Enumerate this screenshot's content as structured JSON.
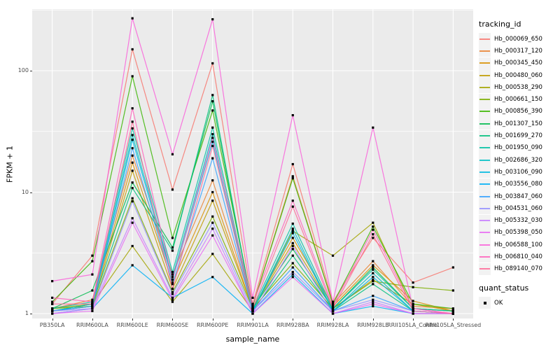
{
  "figure": {
    "background": "#FFFFFF",
    "panel_background": "#EBEBEB",
    "grid_color": "#FFFFFF",
    "axis_text_color": "#4D4D4D",
    "point_color": "#000000"
  },
  "axes": {
    "x_title": "sample_name",
    "y_title": "FPKM + 1",
    "y_tick_labels": [
      "1",
      "10",
      "100"
    ],
    "y_tick_values": [
      1,
      10,
      100
    ],
    "y_minor_values": [
      3.1623,
      31.623,
      316.23
    ],
    "y_scale": "log10"
  },
  "legend": {
    "tracking_title": "tracking_id",
    "quant_title": "quant_status",
    "quant_items": [
      {
        "label": "OK",
        "symbol": "black-square"
      }
    ]
  },
  "chart_data": {
    "type": "line",
    "title": "",
    "xlabel": "sample_name",
    "ylabel": "FPKM + 1",
    "yscale": "log10",
    "ylim": [
      0.91,
      316
    ],
    "grid": true,
    "legend_position": "right",
    "point_marker": "black-square (quant_status OK)",
    "x_categories": [
      "PB350LA",
      "RRIM600LA",
      "RRIM600LE",
      "RRIM600SE",
      "RRIM600PE",
      "RRIM901LA",
      "RRIM928BA",
      "RRIM928LA",
      "RRIM928LE",
      "RRII105LA_Control",
      "RRII105LA_Stressed"
    ],
    "series": [
      {
        "name": "Hb_000069_650",
        "color": "#F8766D",
        "values": [
          1.2,
          3.0,
          150,
          10.5,
          115,
          1.2,
          17,
          1.25,
          4.2,
          1.8,
          2.4
        ]
      },
      {
        "name": "Hb_000317_120",
        "color": "#EA8331",
        "values": [
          1.1,
          1.3,
          20,
          2.1,
          12.5,
          1.15,
          13.5,
          1.2,
          2.7,
          1.15,
          1.1
        ]
      },
      {
        "name": "Hb_000345_450",
        "color": "#D89000",
        "values": [
          1.05,
          1.2,
          17.5,
          1.8,
          10,
          1.1,
          4.2,
          1.15,
          2.5,
          1.27,
          1.05
        ]
      },
      {
        "name": "Hb_000480_060",
        "color": "#C09B00",
        "values": [
          1.05,
          1.15,
          15,
          1.6,
          8.5,
          1.1,
          3.8,
          1.1,
          1.9,
          1.2,
          1.05
        ]
      },
      {
        "name": "Hb_000538_290",
        "color": "#A3A500",
        "values": [
          1.1,
          1.2,
          3.6,
          1.25,
          3.1,
          1.05,
          4.8,
          3.0,
          5.6,
          1.1,
          1.05
        ]
      },
      {
        "name": "Hb_000661_150",
        "color": "#7CAE00",
        "values": [
          1.1,
          1.15,
          8.9,
          1.5,
          6.3,
          1.1,
          2.6,
          1.1,
          1.85,
          1.65,
          1.55
        ]
      },
      {
        "name": "Hb_000856_390",
        "color": "#39B600",
        "values": [
          1.25,
          2.7,
          90,
          4.2,
          47,
          1.15,
          13,
          1.2,
          5.2,
          1.2,
          1.1
        ]
      },
      {
        "name": "Hb_001307_150",
        "color": "#00BB4E",
        "values": [
          1.1,
          1.55,
          12,
          3.5,
          56,
          1.1,
          3.4,
          1.1,
          2.4,
          1.1,
          1.05
        ]
      },
      {
        "name": "Hb_001699_270",
        "color": "#00BF7D",
        "values": [
          1.05,
          1.2,
          10.8,
          3.3,
          63,
          1.05,
          3.0,
          1.05,
          1.75,
          1.05,
          1.0
        ]
      },
      {
        "name": "Hb_001950_090",
        "color": "#00C1A3",
        "values": [
          1.1,
          1.25,
          33.5,
          2.2,
          34,
          1.1,
          5.5,
          1.1,
          2.3,
          1.1,
          1.05
        ]
      },
      {
        "name": "Hb_002686_320",
        "color": "#00BFC4",
        "values": [
          1.05,
          1.2,
          29.5,
          2.0,
          30,
          1.05,
          5.0,
          1.05,
          2.15,
          1.05,
          1.0
        ]
      },
      {
        "name": "Hb_003106_090",
        "color": "#00BAE0",
        "values": [
          1.05,
          1.15,
          27,
          1.9,
          26,
          1.05,
          4.6,
          1.05,
          2.0,
          1.05,
          1.0
        ]
      },
      {
        "name": "Hb_003556_080",
        "color": "#00B0F6",
        "values": [
          1.0,
          1.1,
          2.5,
          1.35,
          2.0,
          1.0,
          2.1,
          1.0,
          1.15,
          1.0,
          1.0
        ]
      },
      {
        "name": "Hb_003847_060",
        "color": "#35A2FF",
        "values": [
          1.05,
          1.15,
          23,
          1.75,
          19,
          1.05,
          2.4,
          1.05,
          1.4,
          1.05,
          1.0
        ]
      },
      {
        "name": "Hb_004531_060",
        "color": "#9590FF",
        "values": [
          1.05,
          1.1,
          8.4,
          1.45,
          5.6,
          1.05,
          2.2,
          1.05,
          1.3,
          1.05,
          1.0
        ]
      },
      {
        "name": "Hb_005332_030",
        "color": "#C77CFF",
        "values": [
          1.0,
          1.1,
          6.1,
          1.35,
          5.0,
          1.0,
          3.6,
          1.0,
          1.25,
          1.0,
          1.0
        ]
      },
      {
        "name": "Hb_005398_050",
        "color": "#E76BF3",
        "values": [
          1.0,
          1.05,
          5.6,
          1.3,
          4.4,
          1.0,
          2.0,
          1.0,
          1.2,
          1.0,
          1.0
        ]
      },
      {
        "name": "Hb_006588_100",
        "color": "#FA62DB",
        "values": [
          1.85,
          2.1,
          270,
          20.5,
          265,
          1.35,
          43,
          1.25,
          34,
          1.1,
          1.0
        ]
      },
      {
        "name": "Hb_006810_040",
        "color": "#FF62BC",
        "values": [
          1.35,
          1.25,
          49,
          1.9,
          28,
          1.2,
          8.5,
          1.15,
          4.9,
          1.1,
          1.0
        ]
      },
      {
        "name": "Hb_089140_070",
        "color": "#FF6A98",
        "values": [
          1.2,
          1.2,
          38,
          1.6,
          24,
          1.1,
          7.6,
          1.1,
          4.5,
          1.05,
          1.0
        ]
      }
    ]
  }
}
